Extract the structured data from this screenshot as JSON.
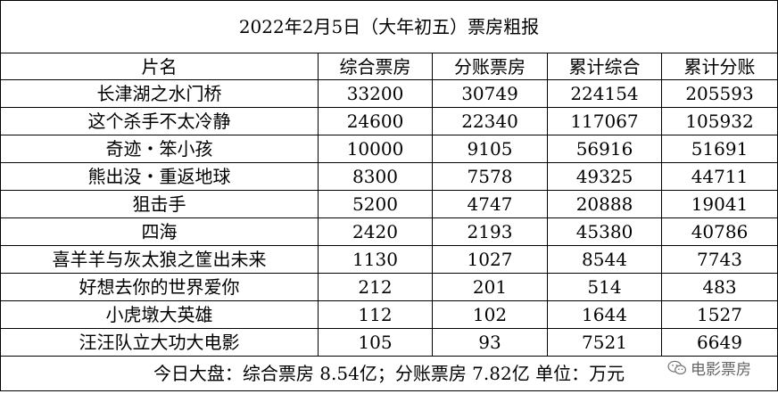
{
  "title": "2022年2月5日（大年初五）票房粗报",
  "columns": [
    "片名",
    "综合票房",
    "分账票房",
    "累计综合",
    "累计分账"
  ],
  "rows": [
    [
      "长津湖之水门桥",
      "33200",
      "30749",
      "224154",
      "205593"
    ],
    [
      "这个杀手不太冷静",
      "24600",
      "22340",
      "117067",
      "105932"
    ],
    [
      "奇迹・笨小孩",
      "10000",
      "9105",
      "56916",
      "51691"
    ],
    [
      "熊出没・重返地球",
      "8300",
      "7578",
      "49325",
      "44711"
    ],
    [
      "狙击手",
      "5200",
      "4747",
      "20888",
      "19041"
    ],
    [
      "四海",
      "2420",
      "2193",
      "45380",
      "40786"
    ],
    [
      "喜羊羊与灰太狼之筐出未来",
      "1130",
      "1027",
      "8544",
      "7743"
    ],
    [
      "好想去你的世界爱你",
      "212",
      "201",
      "514",
      "483"
    ],
    [
      "小虎墩大英雄",
      "112",
      "102",
      "1644",
      "1527"
    ],
    [
      "汪汪队立大功大电影",
      "105",
      "93",
      "7521",
      "6649"
    ]
  ],
  "footer": "今日大盘：综合票房 8.54亿；分账票房 7.82亿    单位：万元",
  "watermark": {
    "text": "电影票房",
    "icon": "wechat-icon"
  }
}
